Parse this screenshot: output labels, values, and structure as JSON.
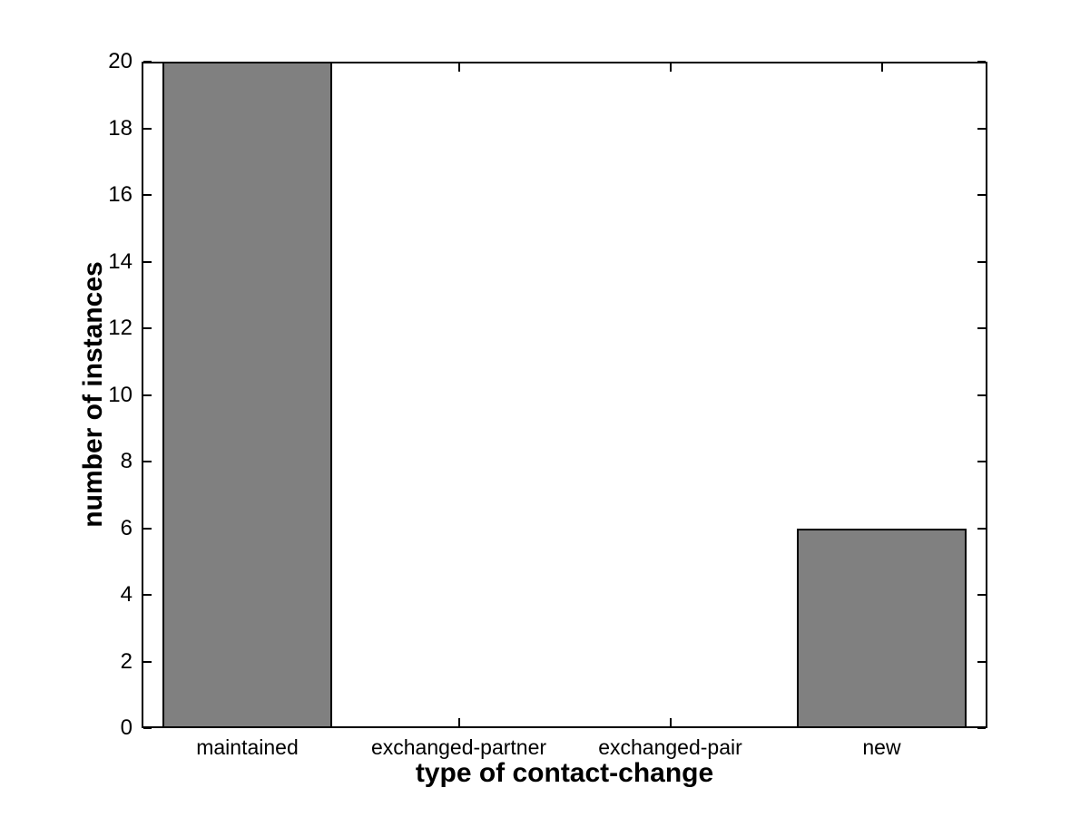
{
  "chart_data": {
    "type": "bar",
    "title": "",
    "categories": [
      "maintained",
      "exchanged-partner",
      "exchanged-pair",
      "new"
    ],
    "values": [
      20,
      0,
      0,
      6
    ],
    "xlabel": "type of contact-change",
    "ylabel": "number of instances",
    "ylim": [
      0,
      20
    ],
    "yticks": [
      0,
      2,
      4,
      6,
      8,
      10,
      12,
      14,
      16,
      18,
      20
    ],
    "ytick_labels": [
      "0",
      "2",
      "4",
      "6",
      "8",
      "10",
      "12",
      "14",
      "16",
      "18",
      "20"
    ],
    "bar_width_fraction": 0.8,
    "grid": false,
    "legend": null,
    "colors": {
      "bar_fill": "#808080",
      "bar_edge": "#000000",
      "axis": "#000000",
      "text": "#000000",
      "background": "#ffffff"
    }
  }
}
